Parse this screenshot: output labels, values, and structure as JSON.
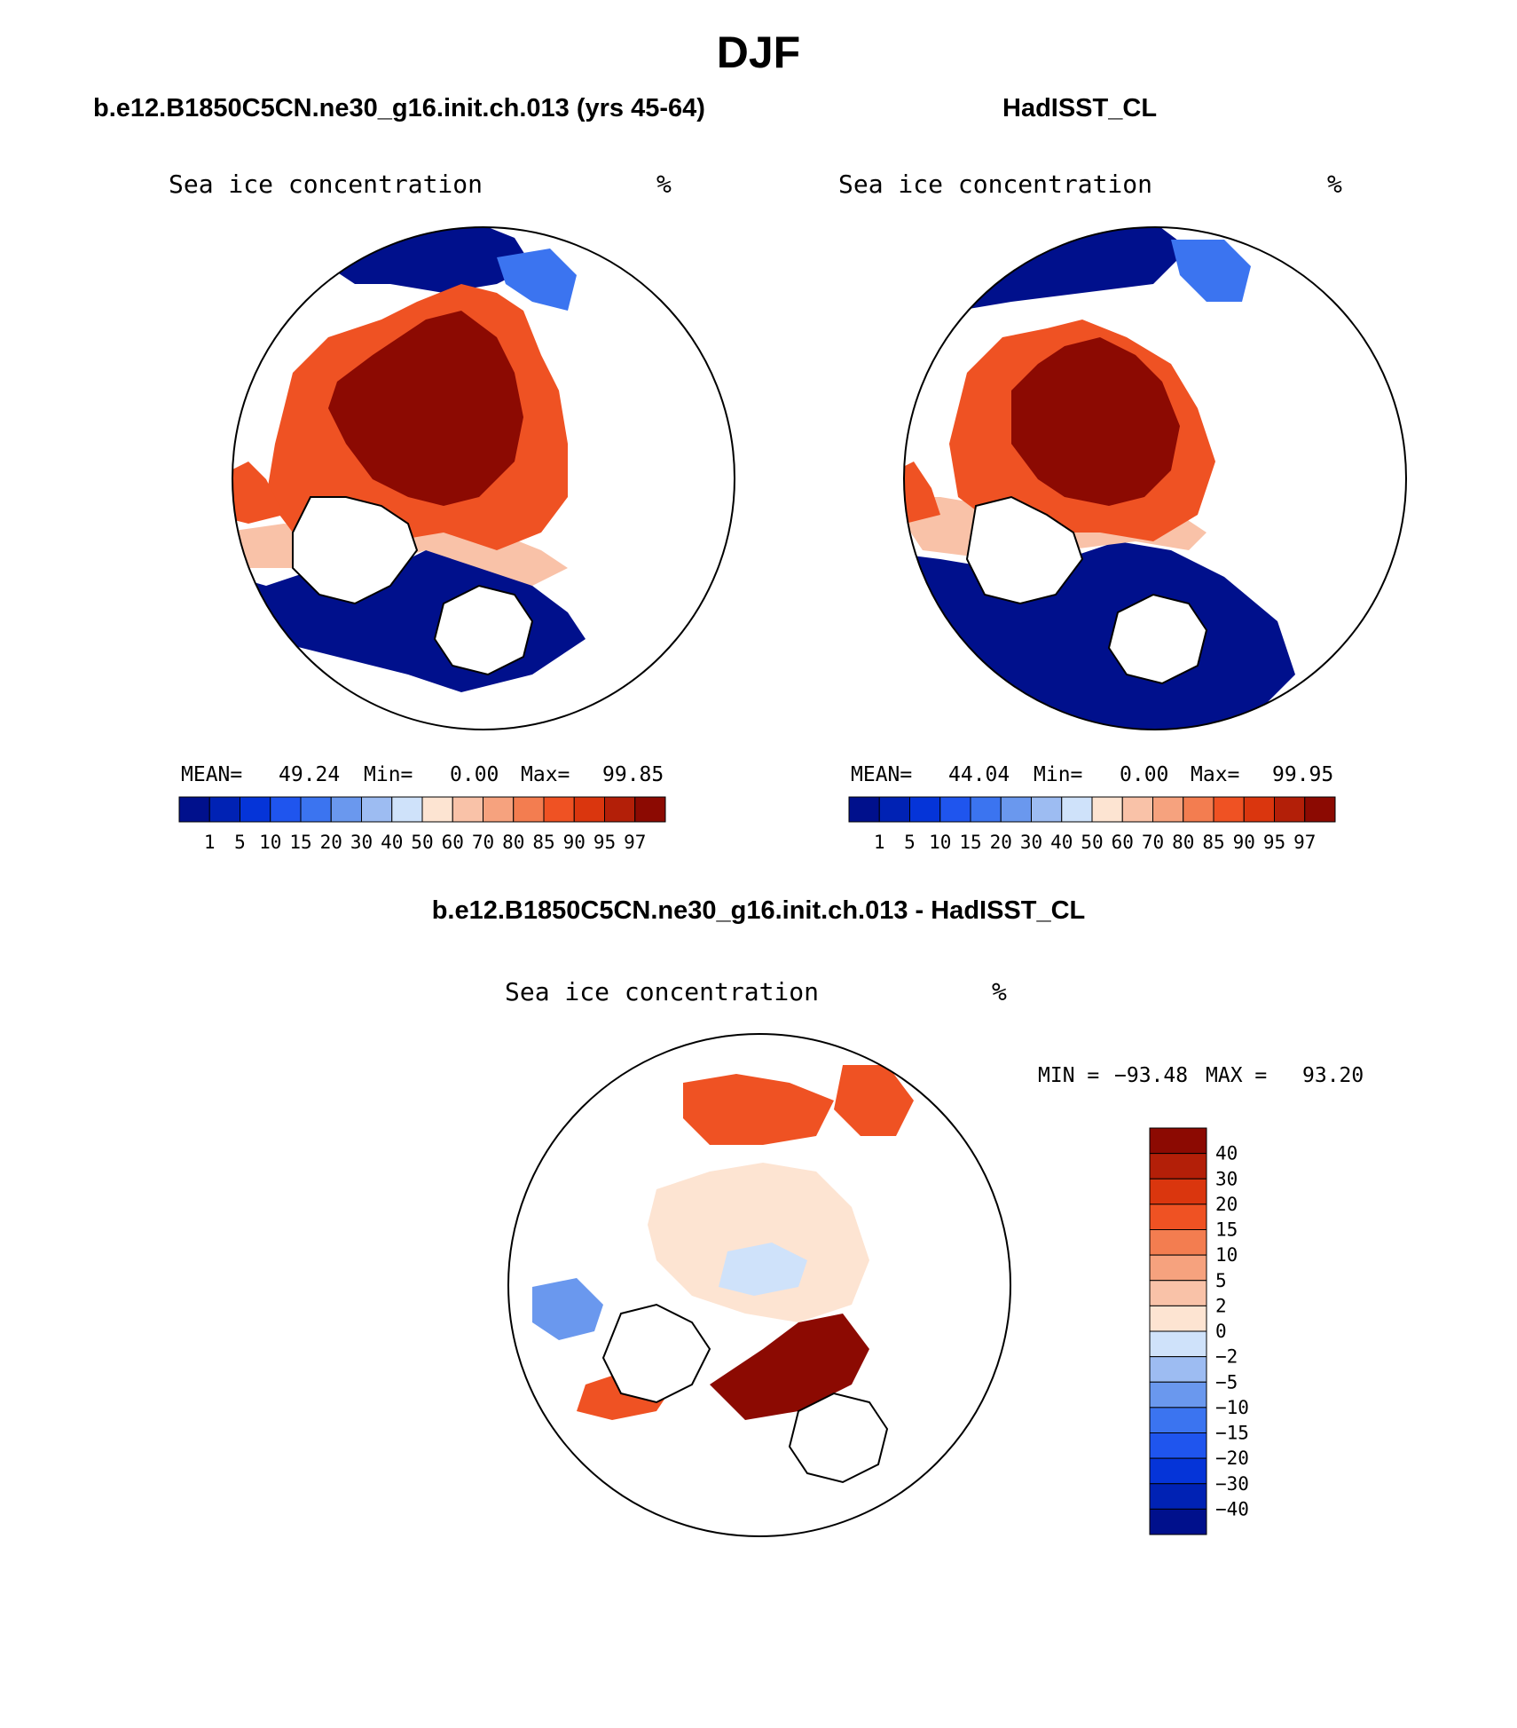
{
  "title": "DJF",
  "panels": {
    "left": {
      "case_title": "b.e12.B1850C5CN.ne30_g16.init.ch.013 (yrs 45-64)",
      "variable": "Sea ice concentration",
      "units": "%",
      "mean_label": "MEAN=",
      "mean_value": "49.24",
      "min_label": "Min=",
      "min_value": "0.00",
      "max_label": "Max=",
      "max_value": "99.85"
    },
    "right": {
      "case_title": "HadISST_CL",
      "variable": "Sea ice concentration",
      "units": "%",
      "mean_label": "MEAN=",
      "mean_value": "44.04",
      "min_label": "Min=",
      "min_value": "0.00",
      "max_label": "Max=",
      "max_value": "99.95"
    },
    "diff": {
      "case_title": "b.e12.B1850C5CN.ne30_g16.init.ch.013 - HadISST_CL",
      "variable": "Sea ice concentration",
      "units": "%",
      "min_label": "MIN =",
      "min_value": "−93.48",
      "max_label": "MAX =",
      "max_value": "93.20"
    }
  },
  "colorbars": {
    "concentration": {
      "levels": [
        "1",
        "5",
        "10",
        "15",
        "20",
        "30",
        "40",
        "50",
        "60",
        "70",
        "80",
        "85",
        "90",
        "95",
        "97"
      ],
      "colors": [
        "#00108c",
        "#0022b4",
        "#0534d8",
        "#1f55ee",
        "#3b74f0",
        "#6a98ee",
        "#9dbcf2",
        "#cfe2fa",
        "#fde4d2",
        "#f9c2a8",
        "#f6a27e",
        "#f37d50",
        "#ef5223",
        "#da360e",
        "#b31f08",
        "#8c0a02"
      ]
    },
    "difference": {
      "levels": [
        "40",
        "30",
        "20",
        "15",
        "10",
        "5",
        "2",
        "0",
        "−2",
        "−5",
        "−10",
        "−15",
        "−20",
        "−30",
        "−40"
      ],
      "colors_top_to_bottom": [
        "#8c0a02",
        "#b31f08",
        "#da360e",
        "#ef5223",
        "#f37d50",
        "#f6a27e",
        "#f9c2a8",
        "#fde4d2",
        "#cfe2fa",
        "#9dbcf2",
        "#6a98ee",
        "#3b74f0",
        "#1f55ee",
        "#0534d8",
        "#0022b4",
        "#00108c"
      ]
    }
  },
  "map_colors": {
    "ice_high": "#8c0a02",
    "ice_mid": "#ef5223",
    "ice_low": "#f9c2a8",
    "open_water": "#00108c",
    "water_mid": "#3b74f0",
    "diff_pos_high": "#8c0a02",
    "diff_pos_mid": "#ef5223",
    "diff_pos_low": "#fde4d2",
    "diff_neg_low": "#cfe2fa",
    "diff_neg_mid": "#6a98ee",
    "land": "#ffffff",
    "coast": "#000000"
  }
}
